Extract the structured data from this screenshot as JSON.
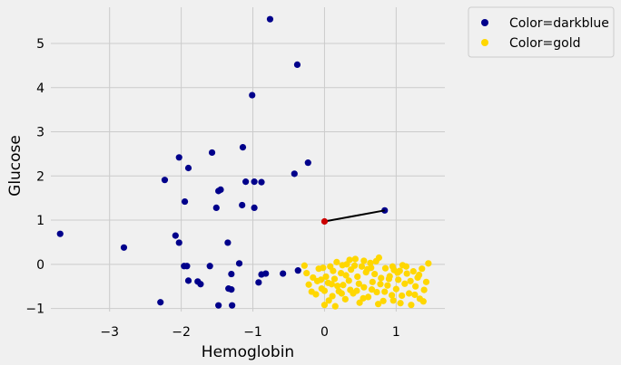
{
  "chart_data": {
    "type": "scatter",
    "xlabel": "Hemoglobin",
    "ylabel": "Glucose",
    "xlim": [
      -3.82,
      1.68
    ],
    "ylim": [
      -1.07,
      5.82
    ],
    "x_ticks": [
      -3,
      -2,
      -1,
      0,
      1
    ],
    "y_ticks": [
      -1,
      0,
      1,
      2,
      3,
      4,
      5
    ],
    "x_tick_labels": [
      "−3",
      "−2",
      "−1",
      "0",
      "1"
    ],
    "y_tick_labels": [
      "−1",
      "0",
      "1",
      "2",
      "3",
      "4",
      "5"
    ],
    "grid": true,
    "legend_position": "outside-right",
    "series": [
      {
        "name": "Color=darkblue",
        "color": "#00008b",
        "points": [
          [
            -0.76,
            5.55
          ],
          [
            -0.38,
            4.52
          ],
          [
            -1.01,
            3.83
          ],
          [
            -1.14,
            2.65
          ],
          [
            -1.57,
            2.53
          ],
          [
            -2.03,
            2.42
          ],
          [
            -1.9,
            2.18
          ],
          [
            -0.23,
            2.3
          ],
          [
            -0.42,
            2.05
          ],
          [
            -2.23,
            1.91
          ],
          [
            -1.1,
            1.87
          ],
          [
            -0.98,
            1.87
          ],
          [
            -0.88,
            1.86
          ],
          [
            -1.45,
            1.69
          ],
          [
            -1.48,
            1.66
          ],
          [
            -1.95,
            1.42
          ],
          [
            -1.15,
            1.34
          ],
          [
            -1.51,
            1.28
          ],
          [
            -0.98,
            1.28
          ],
          [
            0.84,
            1.22
          ],
          [
            -3.69,
            0.69
          ],
          [
            -2.8,
            0.38
          ],
          [
            -2.08,
            0.65
          ],
          [
            -2.03,
            0.49
          ],
          [
            -1.35,
            0.49
          ],
          [
            -1.19,
            0.02
          ],
          [
            -1.96,
            -0.04
          ],
          [
            -1.92,
            -0.04
          ],
          [
            -1.6,
            -0.04
          ],
          [
            -1.3,
            -0.22
          ],
          [
            -0.88,
            -0.23
          ],
          [
            -0.82,
            -0.21
          ],
          [
            -0.58,
            -0.21
          ],
          [
            -0.37,
            -0.14
          ],
          [
            -1.9,
            -0.37
          ],
          [
            -1.77,
            -0.39
          ],
          [
            -1.73,
            -0.45
          ],
          [
            -0.92,
            -0.41
          ],
          [
            -1.34,
            -0.55
          ],
          [
            -1.3,
            -0.57
          ],
          [
            -2.29,
            -0.86
          ],
          [
            -1.48,
            -0.93
          ],
          [
            -1.29,
            -0.93
          ]
        ]
      },
      {
        "name": "Color=gold",
        "color": "#ffd700",
        "points": [
          [
            -0.28,
            -0.03
          ],
          [
            -0.22,
            -0.46
          ],
          [
            -0.16,
            -0.3
          ],
          [
            -0.12,
            -0.68
          ],
          [
            -0.08,
            -0.1
          ],
          [
            -0.04,
            -0.55
          ],
          [
            0.0,
            -0.92
          ],
          [
            0.02,
            -0.28
          ],
          [
            0.05,
            -0.42
          ],
          [
            0.08,
            -0.05
          ],
          [
            0.11,
            -0.72
          ],
          [
            0.14,
            -0.33
          ],
          [
            0.17,
            0.05
          ],
          [
            0.2,
            -0.61
          ],
          [
            0.23,
            -0.2
          ],
          [
            0.26,
            -0.47
          ],
          [
            0.29,
            -0.79
          ],
          [
            0.31,
            0.0
          ],
          [
            0.34,
            -0.37
          ],
          [
            0.37,
            -0.12
          ],
          [
            0.4,
            -0.66
          ],
          [
            0.43,
            0.12
          ],
          [
            0.46,
            -0.28
          ],
          [
            0.49,
            -0.87
          ],
          [
            0.52,
            -0.05
          ],
          [
            0.55,
            -0.52
          ],
          [
            0.58,
            -0.18
          ],
          [
            0.61,
            -0.74
          ],
          [
            0.64,
            0.03
          ],
          [
            0.67,
            -0.4
          ],
          [
            0.7,
            -0.22
          ],
          [
            0.73,
            -0.63
          ],
          [
            0.76,
            0.15
          ],
          [
            0.79,
            -0.31
          ],
          [
            0.82,
            -0.83
          ],
          [
            0.85,
            -0.09
          ],
          [
            0.88,
            -0.48
          ],
          [
            0.91,
            -0.27
          ],
          [
            0.94,
            -0.7
          ],
          [
            0.97,
            -0.13
          ],
          [
            1.0,
            -0.56
          ],
          [
            1.03,
            -0.35
          ],
          [
            1.06,
            -0.88
          ],
          [
            1.09,
            -0.02
          ],
          [
            1.12,
            -0.44
          ],
          [
            1.15,
            -0.21
          ],
          [
            1.18,
            -0.66
          ],
          [
            1.21,
            -0.92
          ],
          [
            1.24,
            -0.16
          ],
          [
            1.27,
            -0.5
          ],
          [
            1.3,
            -0.3
          ],
          [
            1.33,
            -0.78
          ],
          [
            1.36,
            -0.1
          ],
          [
            1.39,
            -0.58
          ],
          [
            1.42,
            -0.4
          ],
          [
            1.45,
            0.02
          ],
          [
            -0.25,
            -0.2
          ],
          [
            -0.18,
            -0.62
          ],
          [
            -0.1,
            -0.38
          ],
          [
            -0.02,
            -0.08
          ],
          [
            0.06,
            -0.82
          ],
          [
            0.12,
            -0.15
          ],
          [
            0.18,
            -0.49
          ],
          [
            0.24,
            -0.66
          ],
          [
            0.3,
            -0.25
          ],
          [
            0.36,
            -0.58
          ],
          [
            0.42,
            -0.03
          ],
          [
            0.48,
            -0.44
          ],
          [
            0.54,
            -0.77
          ],
          [
            0.6,
            -0.11
          ],
          [
            0.66,
            -0.57
          ],
          [
            0.72,
            0.07
          ],
          [
            0.78,
            -0.45
          ],
          [
            0.84,
            -0.62
          ],
          [
            0.9,
            -0.33
          ],
          [
            0.96,
            -0.82
          ],
          [
            1.02,
            -0.19
          ],
          [
            1.08,
            -0.71
          ],
          [
            1.14,
            -0.05
          ],
          [
            1.2,
            -0.38
          ],
          [
            1.26,
            -0.69
          ],
          [
            1.32,
            -0.24
          ],
          [
            1.38,
            -0.84
          ],
          [
            -0.05,
            -0.35
          ],
          [
            0.15,
            -0.95
          ],
          [
            0.45,
            -0.6
          ],
          [
            0.75,
            -0.9
          ],
          [
            0.95,
            -0.05
          ],
          [
            1.05,
            -0.15
          ],
          [
            0.35,
            0.1
          ],
          [
            0.55,
            0.08
          ],
          [
            0.65,
            -0.08
          ],
          [
            0.25,
            -0.02
          ],
          [
            0.0,
            -0.6
          ],
          [
            0.1,
            -0.45
          ]
        ]
      }
    ],
    "highlight_point": {
      "x": 0.0,
      "y": 0.97,
      "color": "#cc0000"
    },
    "nearest_line": {
      "from": [
        0.0,
        0.97
      ],
      "to": [
        0.84,
        1.22
      ],
      "color": "#000000"
    }
  }
}
